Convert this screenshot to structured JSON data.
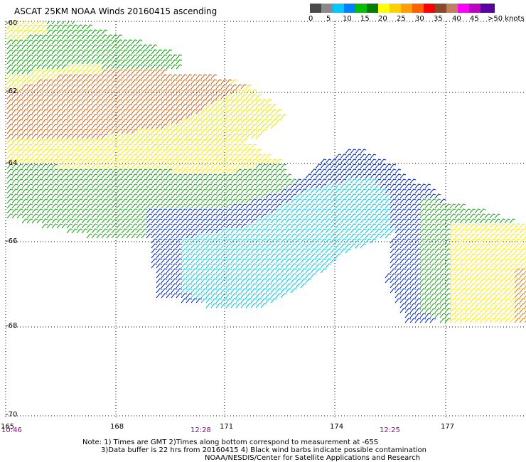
{
  "title": "ASCAT 25KM NOAA Winds 20160415 ascending",
  "legend": {
    "labels": [
      "0",
      "5",
      "10",
      "15",
      "20",
      "25",
      "30",
      "35",
      "40",
      "45",
      ">50 knots"
    ],
    "colors": [
      "#4a4a4a",
      "#8a8a8a",
      "#00c8ff",
      "#0080ff",
      "#00c000",
      "#008000",
      "#ffff00",
      "#ffa000",
      "#ff6000",
      "#ff0000",
      "#8a4a2a",
      "#c08060",
      "#ff00ff",
      "#c000c0",
      "#800080",
      "#4b0082"
    ]
  },
  "map": {
    "lat_labels": [
      "-60",
      "-62",
      "-64",
      "-66",
      "-68",
      "-70"
    ],
    "lon_labels": [
      "165",
      "168",
      "171",
      "174",
      "177"
    ],
    "time_labels": [
      "10:46",
      "12:28",
      "12:25"
    ]
  },
  "notes": {
    "line1": "Note: 1) Times are GMT 2)Times along bottom correspond to measurement at -65S",
    "line2": "3)Data buffer is 22 hrs from 20160415 4) Black wind barbs indicate possible contamination",
    "line3": "NOAA/NESDIS/Center for Satellite Applications and Research"
  }
}
